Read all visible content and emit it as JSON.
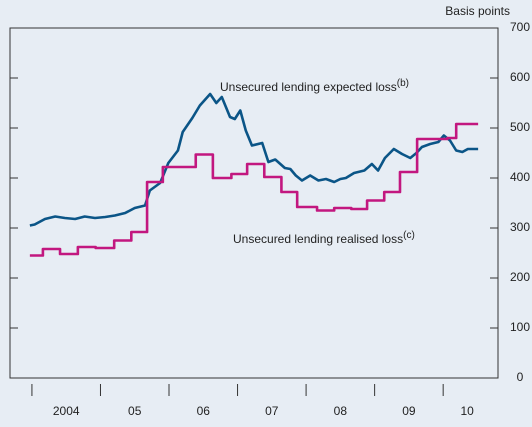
{
  "chart_data": {
    "type": "line",
    "y_axis_label": "Basis points",
    "xlim": [
      2003.68,
      2010.8
    ],
    "xticks": [
      2004,
      2005,
      2006,
      2007,
      2008,
      2009,
      2010
    ],
    "x_period_labels": [
      {
        "value": 2004.5,
        "label": "2004"
      },
      {
        "value": 2005.5,
        "label": "05"
      },
      {
        "value": 2006.5,
        "label": "06"
      },
      {
        "value": 2007.5,
        "label": "07"
      },
      {
        "value": 2008.5,
        "label": "08"
      },
      {
        "value": 2009.5,
        "label": "09"
      },
      {
        "value": 2010.35,
        "label": "10"
      }
    ],
    "ylim": [
      0,
      700
    ],
    "yticks": [
      0,
      100,
      200,
      300,
      400,
      500,
      600,
      700
    ],
    "series": [
      {
        "name": "Unsecured lending expected loss",
        "note": "(b)",
        "color": "#0b5587",
        "step": false,
        "x": [
          2003.97,
          2004.04,
          2004.19,
          2004.34,
          2004.48,
          2004.63,
          2004.77,
          2004.92,
          2005.07,
          2005.21,
          2005.36,
          2005.5,
          2005.65,
          2005.72,
          2005.87,
          2005.99,
          2006.13,
          2006.2,
          2006.34,
          2006.45,
          2006.6,
          2006.69,
          2006.77,
          2006.89,
          2006.96,
          2007.04,
          2007.12,
          2007.21,
          2007.36,
          2007.45,
          2007.55,
          2007.69,
          2007.77,
          2007.85,
          2007.94,
          2008.06,
          2008.18,
          2008.29,
          2008.41,
          2008.5,
          2008.58,
          2008.7,
          2008.85,
          2008.96,
          2009.05,
          2009.15,
          2009.28,
          2009.4,
          2009.52,
          2009.61,
          2009.69,
          2009.81,
          2009.93,
          2010.01,
          2010.1,
          2010.19,
          2010.28,
          2010.36,
          2010.51
        ],
        "values": [
          305,
          307,
          318,
          323,
          320,
          318,
          323,
          320,
          322,
          325,
          330,
          340,
          345,
          375,
          390,
          430,
          455,
          492,
          520,
          545,
          568,
          550,
          562,
          522,
          518,
          535,
          495,
          465,
          470,
          432,
          437,
          420,
          418,
          405,
          395,
          405,
          395,
          398,
          392,
          398,
          400,
          410,
          415,
          428,
          415,
          440,
          458,
          448,
          440,
          450,
          462,
          468,
          472,
          485,
          475,
          455,
          452,
          458,
          458
        ]
      },
      {
        "name": "Unsecured lending realised loss",
        "note": "(c)",
        "color": "#c2177f",
        "step": true,
        "x": [
          2003.97,
          2004.16,
          2004.41,
          2004.67,
          2004.93,
          2005.2,
          2005.45,
          2005.68,
          2005.91,
          2006.39,
          2006.64,
          2006.91,
          2007.14,
          2007.39,
          2007.64,
          2007.87,
          2008.16,
          2008.41,
          2008.66,
          2008.89,
          2009.14,
          2009.37,
          2009.62,
          2010.06,
          2010.19,
          2010.51
        ],
        "values": [
          245,
          258,
          248,
          262,
          260,
          275,
          292,
          392,
          422,
          447,
          400,
          408,
          428,
          402,
          372,
          342,
          335,
          340,
          338,
          355,
          372,
          412,
          478,
          480,
          508,
          508
        ]
      }
    ]
  }
}
